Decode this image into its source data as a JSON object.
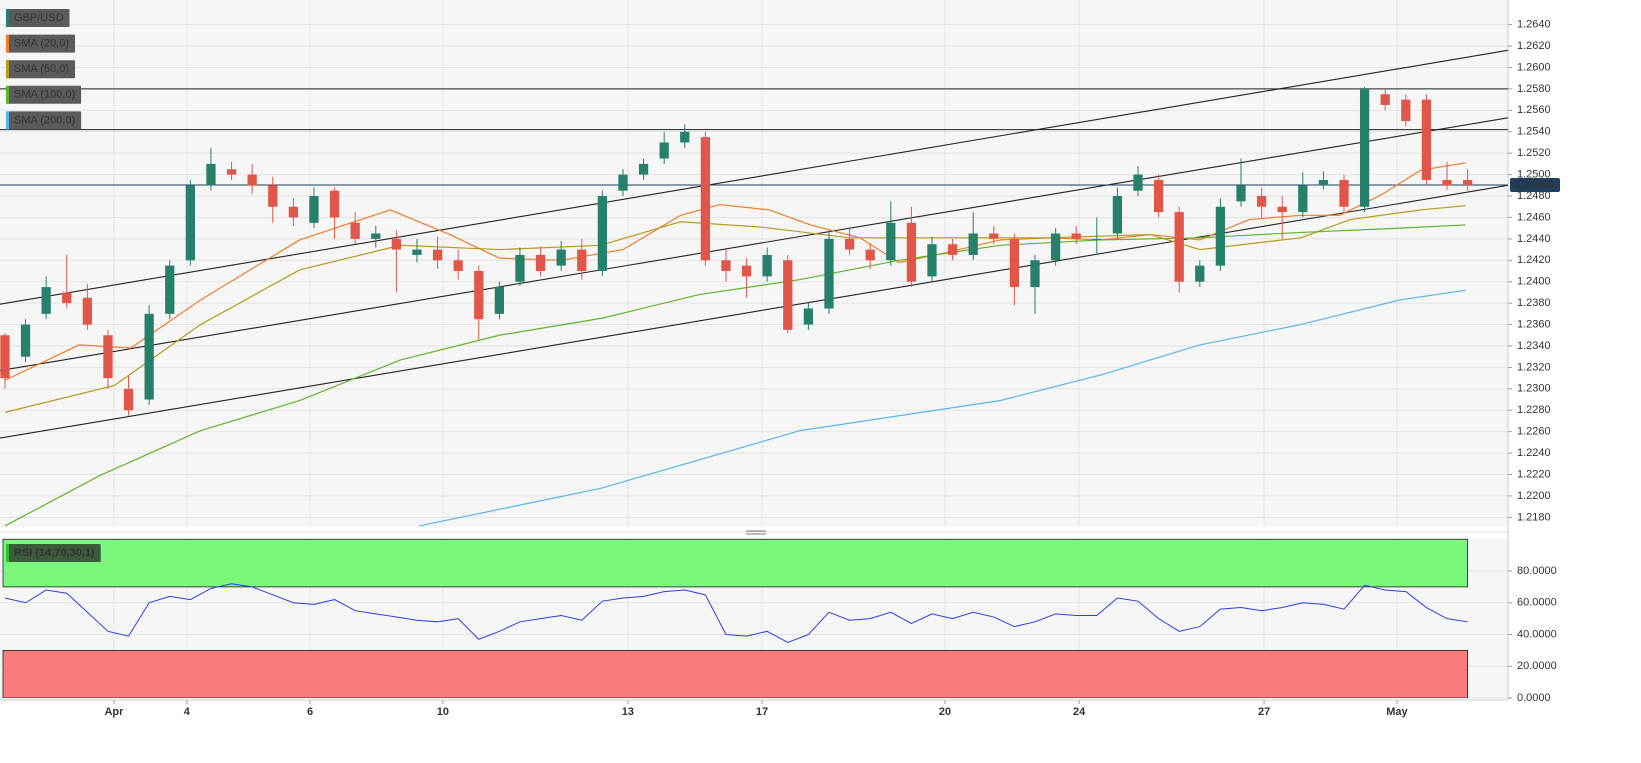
{
  "chart_data": [
    {
      "type": "candlestick",
      "title": "GBP/USD",
      "open": [
        1.235,
        1.233,
        1.237,
        1.239,
        1.2385,
        1.235,
        1.23,
        1.229,
        1.237,
        1.242,
        1.249,
        1.2505,
        1.25,
        1.249,
        1.247,
        1.2455,
        1.2485,
        1.2455,
        1.244,
        1.244,
        1.2425,
        1.243,
        1.242,
        1.241,
        1.237,
        1.24,
        1.2425,
        1.2415,
        1.243,
        1.241,
        1.2485,
        1.25,
        1.2515,
        1.253,
        1.2535,
        1.242,
        1.2415,
        1.2405,
        1.242,
        1.236,
        1.2375,
        1.244,
        1.243,
        1.242,
        1.2455,
        1.2405,
        1.2435,
        1.2425,
        1.2445,
        1.244,
        1.2395,
        1.242,
        1.2445,
        1.244,
        1.2445,
        1.2485,
        1.2495,
        1.2465,
        1.24,
        1.2415,
        1.2475,
        1.248,
        1.247,
        1.2465,
        1.249,
        1.2495,
        1.247,
        1.2575,
        1.257,
        1.257,
        1.2495,
        1.2495
      ],
      "high": [
        1.2352,
        1.2365,
        1.2405,
        1.2425,
        1.2398,
        1.2355,
        1.2312,
        1.2378,
        1.242,
        1.2495,
        1.2525,
        1.2512,
        1.251,
        1.2498,
        1.2478,
        1.2488,
        1.2488,
        1.2465,
        1.2452,
        1.2448,
        1.244,
        1.2442,
        1.243,
        1.2415,
        1.24,
        1.2432,
        1.2433,
        1.2438,
        1.244,
        1.2485,
        1.2505,
        1.2515,
        1.254,
        1.2547,
        1.254,
        1.243,
        1.2422,
        1.2432,
        1.2425,
        1.238,
        1.2448,
        1.245,
        1.2436,
        1.2475,
        1.247,
        1.2442,
        1.244,
        1.2465,
        1.2452,
        1.2445,
        1.2425,
        1.245,
        1.2452,
        1.246,
        1.2488,
        1.2508,
        1.25,
        1.247,
        1.242,
        1.2478,
        1.2515,
        1.2488,
        1.248,
        1.2502,
        1.2503,
        1.25,
        1.2582,
        1.258,
        1.2575,
        1.2575,
        1.2512,
        1.2505
      ],
      "low": [
        1.23,
        1.2325,
        1.2365,
        1.2375,
        1.2355,
        1.23,
        1.2275,
        1.2285,
        1.2365,
        1.2415,
        1.2485,
        1.2495,
        1.2482,
        1.2455,
        1.2452,
        1.245,
        1.244,
        1.2435,
        1.2432,
        1.239,
        1.2418,
        1.2412,
        1.2402,
        1.2345,
        1.2365,
        1.2396,
        1.2405,
        1.241,
        1.2402,
        1.2405,
        1.248,
        1.2495,
        1.251,
        1.2525,
        1.2415,
        1.24,
        1.2385,
        1.24,
        1.2352,
        1.2355,
        1.237,
        1.2425,
        1.2412,
        1.2415,
        1.2395,
        1.24,
        1.242,
        1.242,
        1.2435,
        1.2378,
        1.237,
        1.2415,
        1.2435,
        1.2425,
        1.244,
        1.248,
        1.246,
        1.239,
        1.2395,
        1.241,
        1.247,
        1.246,
        1.244,
        1.246,
        1.2486,
        1.2465,
        1.2465,
        1.256,
        1.2545,
        1.249,
        1.2486,
        1.2485
      ],
      "close": [
        1.231,
        1.236,
        1.2395,
        1.238,
        1.236,
        1.231,
        1.228,
        1.237,
        1.2415,
        1.249,
        1.251,
        1.25,
        1.249,
        1.247,
        1.246,
        1.248,
        1.246,
        1.244,
        1.2445,
        1.243,
        1.243,
        1.242,
        1.241,
        1.2365,
        1.2395,
        1.2425,
        1.241,
        1.243,
        1.241,
        1.248,
        1.25,
        1.251,
        1.253,
        1.254,
        1.242,
        1.241,
        1.2405,
        1.2425,
        1.2355,
        1.2375,
        1.244,
        1.243,
        1.242,
        1.2455,
        1.24,
        1.2435,
        1.2425,
        1.2445,
        1.244,
        1.2395,
        1.242,
        1.2445,
        1.244,
        1.244,
        1.248,
        1.25,
        1.2465,
        1.24,
        1.2415,
        1.247,
        1.249,
        1.247,
        1.2465,
        1.249,
        1.2495,
        1.247,
        1.258,
        1.2565,
        1.255,
        1.2495,
        1.249,
        1.24903
      ],
      "up_color": "#26806a",
      "down_color": "#e0574a",
      "series": [
        {
          "name": "SMA (20,0)",
          "color": "#f07c28",
          "x": [
            0,
            3.6,
            6.1,
            9.5,
            14.3,
            18.7,
            21.6,
            24,
            27,
            30,
            32.8,
            34.7,
            37.1,
            39.1,
            41.5,
            43.4,
            45.9,
            48.3,
            50.7,
            53.2,
            55.6,
            58,
            60.4,
            62.9,
            64.8,
            66.8,
            68.7,
            70.9
          ],
          "values": [
            1.2308,
            1.2341,
            1.2338,
            1.2383,
            1.2439,
            1.2467,
            1.2444,
            1.2422,
            1.242,
            1.243,
            1.2462,
            1.2472,
            1.2467,
            1.2453,
            1.2441,
            1.2418,
            1.2428,
            1.2439,
            1.2441,
            1.2439,
            1.2444,
            1.2439,
            1.2458,
            1.2462,
            1.2462,
            1.2481,
            1.2504,
            1.2511
          ]
        },
        {
          "name": "SMA (50,0)",
          "color": "#b59a1c",
          "x": [
            0,
            5.3,
            9.5,
            14.3,
            19.2,
            24,
            28.9,
            32.8,
            36.7,
            41,
            45.9,
            50.7,
            55.6,
            58,
            62.9,
            65.3,
            68.7,
            70.9
          ],
          "values": [
            1.2278,
            1.2303,
            1.236,
            1.2411,
            1.2434,
            1.243,
            1.2434,
            1.2456,
            1.2451,
            1.2441,
            1.2441,
            1.2441,
            1.2444,
            1.243,
            1.2441,
            1.2458,
            1.2467,
            1.2471
          ]
        },
        {
          "name": "SMA (100,0)",
          "color": "#5fb52a",
          "x": [
            0,
            4.6,
            9.5,
            14.3,
            19.2,
            24,
            29,
            33.7,
            38.6,
            43.4,
            48.3,
            53.2,
            58,
            62.9,
            67.7,
            70.9
          ],
          "values": [
            1.2172,
            1.2219,
            1.2261,
            1.2289,
            1.2327,
            1.235,
            1.2366,
            1.2388,
            1.2402,
            1.242,
            1.2434,
            1.2439,
            1.2441,
            1.2446,
            1.245,
            1.2453
          ]
        },
        {
          "name": "SMA (200,0)",
          "color": "#5ab4ee",
          "x": [
            20.1,
            28.9,
            38.6,
            48.3,
            53.2,
            58,
            62.9,
            67.7,
            70.9
          ],
          "values": [
            1.2172,
            1.2207,
            1.2261,
            1.2289,
            1.2313,
            1.2341,
            1.236,
            1.2383,
            1.2392
          ]
        }
      ],
      "levels": [
        1.258,
        1.2542
      ],
      "trendlines": [
        {
          "x": [
            -0.24,
            72.96
          ],
          "values": [
            1.2379,
            1.2616
          ]
        },
        {
          "x": [
            -0.24,
            72.96
          ],
          "values": [
            1.2317,
            1.2553
          ]
        },
        {
          "x": [
            -0.24,
            72.96
          ],
          "values": [
            1.2254,
            1.249
          ]
        }
      ],
      "last_price": {
        "value": 1.24903,
        "label": "1.24903"
      },
      "xlim": [
        -0.24,
        72.96
      ],
      "ylim": [
        1.2171,
        1.2663
      ],
      "yticks": [
        {
          "value": 1.218,
          "label": "1.2180"
        },
        {
          "value": 1.22,
          "label": "1.2200"
        },
        {
          "value": 1.222,
          "label": "1.2220"
        },
        {
          "value": 1.224,
          "label": "1.2240"
        },
        {
          "value": 1.226,
          "label": "1.2260"
        },
        {
          "value": 1.228,
          "label": "1.2280"
        },
        {
          "value": 1.23,
          "label": "1.2300"
        },
        {
          "value": 1.232,
          "label": "1.2320"
        },
        {
          "value": 1.234,
          "label": "1.2340"
        },
        {
          "value": 1.236,
          "label": "1.2360"
        },
        {
          "value": 1.238,
          "label": "1.2380"
        },
        {
          "value": 1.24,
          "label": "1.2400"
        },
        {
          "value": 1.242,
          "label": "1.2420"
        },
        {
          "value": 1.244,
          "label": "1.2440"
        },
        {
          "value": 1.246,
          "label": "1.2460"
        },
        {
          "value": 1.248,
          "label": "1.2480"
        },
        {
          "value": 1.25,
          "label": "1.2500"
        },
        {
          "value": 1.252,
          "label": "1.2520"
        },
        {
          "value": 1.254,
          "label": "1.2540"
        },
        {
          "value": 1.256,
          "label": "1.2560"
        },
        {
          "value": 1.258,
          "label": "1.2580"
        },
        {
          "value": 1.26,
          "label": "1.2600"
        },
        {
          "value": 1.262,
          "label": "1.2620"
        },
        {
          "value": 1.264,
          "label": "1.2640"
        }
      ],
      "grid": true
    },
    {
      "type": "line",
      "series": [
        {
          "name": "RSI (14,70,30,1)",
          "color": "#2a3ee0",
          "values": [
            63,
            60,
            68,
            66,
            54,
            42,
            39,
            60,
            64,
            62,
            69,
            72,
            70,
            65,
            60,
            59,
            62,
            55,
            53,
            51,
            49,
            48,
            50,
            37,
            42,
            48,
            50,
            52,
            49,
            61,
            63,
            64,
            67,
            68,
            65,
            40,
            39,
            42,
            35,
            40,
            54,
            49,
            50,
            54,
            47,
            53,
            50,
            54,
            51,
            45,
            48,
            53,
            52,
            52,
            63,
            61,
            50,
            42,
            45,
            56,
            57,
            55,
            57,
            60,
            59,
            56,
            71,
            68,
            67,
            57,
            50,
            48
          ]
        }
      ],
      "bands": [
        {
          "from": 70,
          "to": 100,
          "color": "#7bf77b"
        },
        {
          "from": 0,
          "to": 30,
          "color": "#fa7b7b"
        }
      ],
      "xlim": [
        -0.24,
        72.96
      ],
      "ylim": [
        0,
        100.8
      ],
      "yticks": [
        {
          "value": 0,
          "label": "0.0000"
        },
        {
          "value": 20,
          "label": "20.0000"
        },
        {
          "value": 40,
          "label": "40.0000"
        },
        {
          "value": 60,
          "label": "60.0000"
        },
        {
          "value": 80,
          "label": "80.0000"
        }
      ],
      "xticks": [
        {
          "value": 5.29,
          "label": "Apr"
        },
        {
          "value": 8.83,
          "label": "4"
        },
        {
          "value": 14.81,
          "label": "6"
        },
        {
          "value": 21.26,
          "label": "10"
        },
        {
          "value": 30.24,
          "label": "13"
        },
        {
          "value": 36.75,
          "label": "17"
        },
        {
          "value": 45.63,
          "label": "20"
        },
        {
          "value": 52.14,
          "label": "24"
        },
        {
          "value": 61.12,
          "label": "27"
        },
        {
          "value": 67.57,
          "label": "May"
        }
      ],
      "grid": true
    }
  ]
}
